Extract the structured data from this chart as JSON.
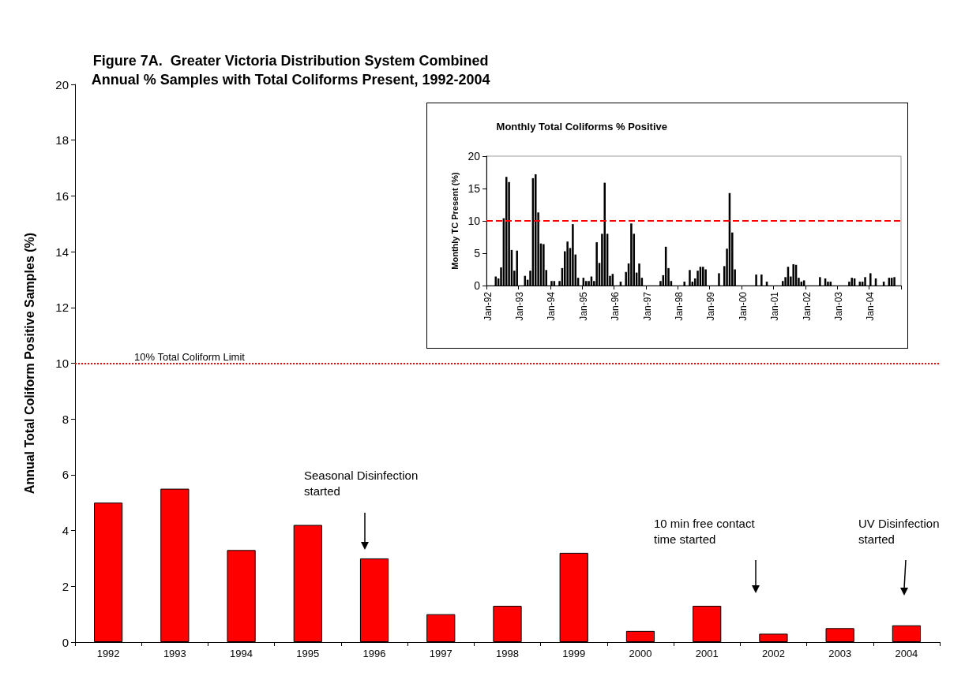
{
  "chart_data": [
    {
      "type": "bar",
      "title": "Figure 7A.  Greater Victoria Distribution System Combined\nAnnual % Samples with Total Coliforms Present, 1992-2004",
      "ylabel": "Annual Total Coliform Positive Samples (%)",
      "categories": [
        "1992",
        "1993",
        "1994",
        "1995",
        "1996",
        "1997",
        "1998",
        "1999",
        "2000",
        "2001",
        "2002",
        "2003",
        "2004"
      ],
      "values": [
        5.0,
        5.5,
        3.3,
        4.2,
        3.0,
        1.0,
        1.3,
        3.2,
        0.4,
        1.3,
        0.3,
        0.5,
        0.6
      ],
      "color": "#ff0000",
      "ylim": [
        0,
        20
      ],
      "yticks": [
        0,
        2,
        4,
        6,
        8,
        10,
        12,
        14,
        16,
        18,
        20
      ],
      "ref_lines": [
        {
          "axis": "y",
          "value": 10,
          "label": "10% Total Coliform Limit",
          "color": "#ff0000",
          "line_style": "dotted"
        }
      ],
      "annotations": [
        "Seasonal Disinfection\nstarted",
        "10 min free contact\ntime started",
        "UV Disinfection\nstarted"
      ]
    },
    {
      "type": "bar",
      "title": "Monthly Total Coliforms % Positive",
      "ylabel": "Monthly TC Present (%)",
      "categories": [
        "Jan-92",
        null,
        null,
        null,
        null,
        null,
        null,
        null,
        null,
        null,
        null,
        null,
        "Jan-93",
        null,
        null,
        null,
        null,
        null,
        null,
        null,
        null,
        null,
        null,
        null,
        "Jan-94",
        null,
        null,
        null,
        null,
        null,
        null,
        null,
        null,
        null,
        null,
        null,
        "Jan-95",
        null,
        null,
        null,
        null,
        null,
        null,
        null,
        null,
        null,
        null,
        null,
        "Jan-96",
        null,
        null,
        null,
        null,
        null,
        null,
        null,
        null,
        null,
        null,
        null,
        "Jan-97",
        null,
        null,
        null,
        null,
        null,
        null,
        null,
        null,
        null,
        null,
        null,
        "Jan-98",
        null,
        null,
        null,
        null,
        null,
        null,
        null,
        null,
        null,
        null,
        null,
        "Jan-99",
        null,
        null,
        null,
        null,
        null,
        null,
        null,
        null,
        null,
        null,
        null,
        "Jan-00",
        null,
        null,
        null,
        null,
        null,
        null,
        null,
        null,
        null,
        null,
        null,
        "Jan-01",
        null,
        null,
        null,
        null,
        null,
        null,
        null,
        null,
        null,
        null,
        null,
        "Jan-02",
        null,
        null,
        null,
        null,
        null,
        null,
        null,
        null,
        null,
        null,
        null,
        "Jan-03",
        null,
        null,
        null,
        null,
        null,
        null,
        null,
        null,
        null,
        null,
        null,
        "Jan-04",
        null,
        null,
        null,
        null,
        null,
        null,
        null,
        null,
        null,
        null,
        null
      ],
      "values": [
        0,
        0,
        0,
        1.4,
        1.1,
        2.8,
        10.4,
        16.8,
        16.0,
        5.5,
        2.3,
        5.4,
        0,
        0,
        1.5,
        0.9,
        2.3,
        16.6,
        17.2,
        11.3,
        6.5,
        6.4,
        2.4,
        0,
        0.7,
        0.7,
        0,
        0.7,
        2.7,
        5.3,
        6.8,
        5.8,
        9.5,
        4.8,
        1.2,
        0,
        1.2,
        0.7,
        0.7,
        1.4,
        0.7,
        6.7,
        3.5,
        8.0,
        15.9,
        8.0,
        1.5,
        1.8,
        0,
        0,
        0.6,
        0,
        2.1,
        3.4,
        9.6,
        8.0,
        2.0,
        3.4,
        1.2,
        0,
        0,
        0,
        0,
        0,
        0,
        0.7,
        1.6,
        6.0,
        2.7,
        0.7,
        0,
        0,
        0,
        0,
        0.6,
        0,
        2.4,
        0.6,
        1.1,
        2.3,
        2.9,
        2.9,
        2.5,
        0,
        0,
        0,
        0,
        1.9,
        0,
        3.0,
        5.7,
        14.3,
        8.2,
        2.5,
        0,
        0,
        0,
        0,
        0,
        0,
        0,
        1.7,
        0,
        1.7,
        0,
        0.6,
        0,
        0,
        0,
        0,
        0,
        0.7,
        1.3,
        2.9,
        1.4,
        3.3,
        3.2,
        1.2,
        0.6,
        0.8,
        0,
        0,
        0,
        0,
        0,
        1.3,
        0,
        1.1,
        0.6,
        0.6,
        0,
        0,
        0,
        0,
        0,
        0,
        0.6,
        1.2,
        1.1,
        0,
        0.6,
        0.6,
        1.3,
        0,
        1.9,
        0,
        1.1,
        0,
        0,
        0.6,
        0,
        1.2,
        1.2,
        1.3,
        0,
        0
      ],
      "color": "#000000",
      "ylim": [
        0,
        20
      ],
      "yticks": [
        0,
        5,
        10,
        15,
        20
      ],
      "ref_lines": [
        {
          "axis": "y",
          "value": 10,
          "color": "#ff0000",
          "line_style": "dashed"
        }
      ]
    }
  ]
}
